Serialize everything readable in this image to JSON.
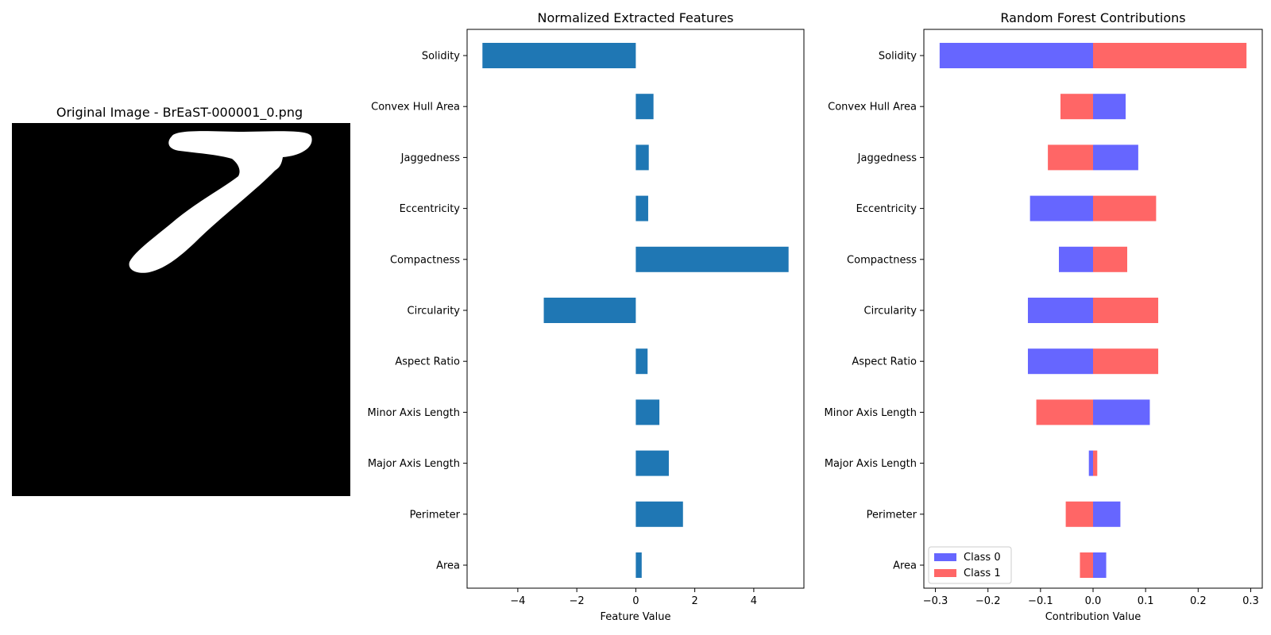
{
  "image_panel": {
    "title": "Original Image - BrEaST-000001_0.png",
    "background": "#000000",
    "foreground": "#ffffff"
  },
  "chart_data": [
    {
      "type": "bar",
      "orientation": "horizontal",
      "title": "Normalized Extracted Features",
      "xlabel": "Feature Value",
      "ylabel": "",
      "categories": [
        "Area",
        "Perimeter",
        "Major Axis Length",
        "Minor Axis Length",
        "Aspect Ratio",
        "Circularity",
        "Compactness",
        "Eccentricity",
        "Jaggedness",
        "Convex Hull Area",
        "Solidity"
      ],
      "values": [
        0.2,
        1.6,
        1.12,
        0.8,
        0.4,
        -3.12,
        5.18,
        0.42,
        0.44,
        0.6,
        -5.2
      ],
      "xlim": [
        -5.72,
        5.7
      ],
      "xticks": [
        -4,
        -2,
        0,
        2,
        4
      ],
      "xtick_labels": [
        "−4",
        "−2",
        "0",
        "2",
        "4"
      ],
      "color": "#1f77b4",
      "grid": false
    },
    {
      "type": "bar",
      "orientation": "horizontal",
      "stacked": "diverging",
      "title": "Random Forest Contributions",
      "xlabel": "Contribution Value",
      "ylabel": "",
      "categories": [
        "Area",
        "Perimeter",
        "Major Axis Length",
        "Minor Axis Length",
        "Aspect Ratio",
        "Circularity",
        "Compactness",
        "Eccentricity",
        "Jaggedness",
        "Convex Hull Area",
        "Solidity"
      ],
      "series": [
        {
          "name": "Class 0",
          "color": "#6666ff",
          "values": [
            0.025,
            0.052,
            -0.008,
            0.108,
            -0.124,
            -0.124,
            -0.065,
            -0.12,
            0.086,
            0.062,
            -0.292
          ]
        },
        {
          "name": "Class 1",
          "color": "#ff6666",
          "values": [
            -0.025,
            -0.052,
            0.008,
            -0.108,
            0.124,
            0.124,
            0.065,
            0.12,
            -0.086,
            -0.062,
            0.292
          ]
        }
      ],
      "xlim": [
        -0.322,
        0.322
      ],
      "xticks": [
        -0.3,
        -0.2,
        -0.1,
        0.0,
        0.1,
        0.2,
        0.3
      ],
      "xtick_labels": [
        "−0.3",
        "−0.2",
        "−0.1",
        "0.0",
        "0.1",
        "0.2",
        "0.3"
      ],
      "legend": "lower-left",
      "grid": false
    }
  ]
}
